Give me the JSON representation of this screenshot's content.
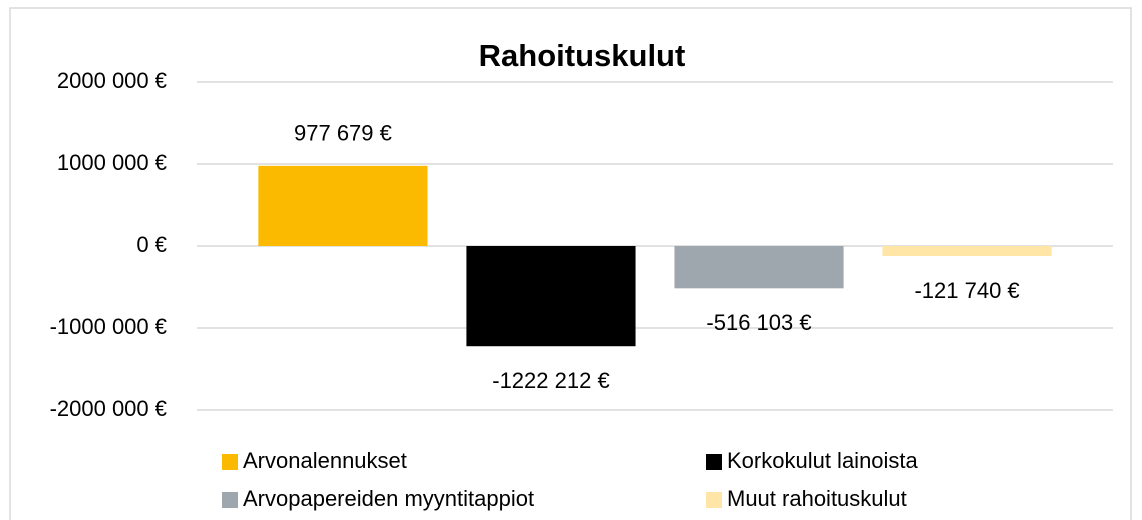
{
  "chart_data": {
    "type": "bar",
    "title": "Rahoituskulut",
    "categories": [
      null
    ],
    "series": [
      {
        "name": "Arvonalennukset",
        "color": "#fbb900",
        "values": [
          977679
        ],
        "value_labels": [
          "977 679 €"
        ]
      },
      {
        "name": "Korkokulut lainoista",
        "color": "#000000",
        "values": [
          -1222212
        ],
        "value_labels": [
          "-1222 212 €"
        ]
      },
      {
        "name": "Arvopapereiden myyntitappiot",
        "color": "#9ea7ad",
        "values": [
          -516103
        ],
        "value_labels": [
          "-516 103 €"
        ]
      },
      {
        "name": "Muut rahoituskulut",
        "color": "#ffe6a6",
        "values": [
          -121740
        ],
        "value_labels": [
          "-121 740 €"
        ]
      }
    ],
    "ylim": [
      -2000000,
      2000000
    ],
    "yticks": [
      {
        "value": -2000000,
        "label": "-2000 000 €"
      },
      {
        "value": -1000000,
        "label": "-1000 000 €"
      },
      {
        "value": 0,
        "label": "0 €"
      },
      {
        "value": 1000000,
        "label": "1000 000 €"
      },
      {
        "value": 2000000,
        "label": "2000 000 €"
      }
    ],
    "grid": true,
    "legend": "bottom"
  }
}
